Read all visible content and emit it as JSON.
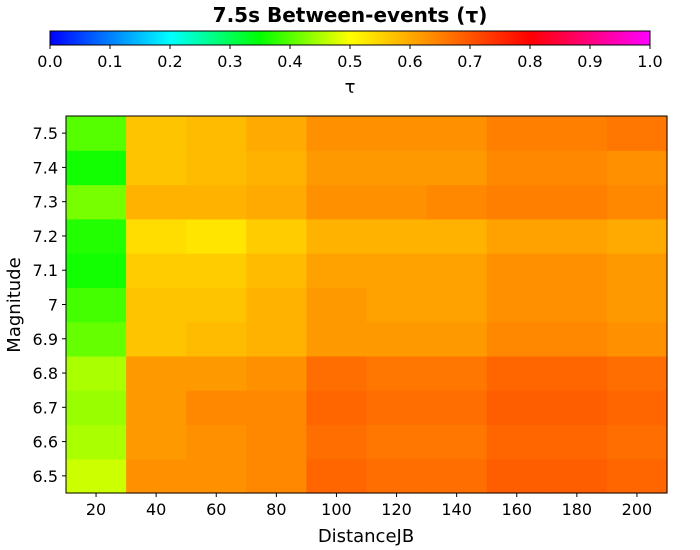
{
  "chart_data": {
    "type": "heatmap",
    "title": "7.5s Between-events (τ)",
    "xlabel": "DistanceJB",
    "ylabel": "Magnitude",
    "colorbar_label": "τ",
    "colorbar_range": [
      0.0,
      1.0
    ],
    "colorbar_ticks": [
      "0.0",
      "0.1",
      "0.2",
      "0.3",
      "0.4",
      "0.5",
      "0.6",
      "0.7",
      "0.8",
      "0.9",
      "1.0"
    ],
    "x": [
      "20",
      "40",
      "60",
      "80",
      "100",
      "120",
      "140",
      "160",
      "180",
      "200"
    ],
    "y": [
      "6.5",
      "6.6",
      "6.7",
      "6.8",
      "6.9",
      "7",
      "7.1",
      "7.2",
      "7.3",
      "7.4",
      "7.5"
    ],
    "values": [
      [
        0.47,
        0.63,
        0.63,
        0.64,
        0.68,
        0.67,
        0.67,
        0.69,
        0.69,
        0.68
      ],
      [
        0.45,
        0.62,
        0.63,
        0.64,
        0.67,
        0.66,
        0.66,
        0.68,
        0.68,
        0.67
      ],
      [
        0.44,
        0.62,
        0.64,
        0.64,
        0.68,
        0.67,
        0.67,
        0.69,
        0.69,
        0.68
      ],
      [
        0.45,
        0.62,
        0.62,
        0.63,
        0.67,
        0.66,
        0.66,
        0.68,
        0.68,
        0.67
      ],
      [
        0.41,
        0.57,
        0.58,
        0.59,
        0.62,
        0.62,
        0.62,
        0.64,
        0.64,
        0.63
      ],
      [
        0.39,
        0.57,
        0.57,
        0.59,
        0.62,
        0.61,
        0.61,
        0.63,
        0.63,
        0.62
      ],
      [
        0.36,
        0.56,
        0.56,
        0.58,
        0.61,
        0.61,
        0.61,
        0.63,
        0.63,
        0.62
      ],
      [
        0.37,
        0.54,
        0.53,
        0.56,
        0.59,
        0.59,
        0.59,
        0.61,
        0.61,
        0.6
      ],
      [
        0.42,
        0.59,
        0.59,
        0.6,
        0.63,
        0.63,
        0.64,
        0.65,
        0.65,
        0.64
      ],
      [
        0.36,
        0.57,
        0.58,
        0.59,
        0.62,
        0.62,
        0.62,
        0.64,
        0.64,
        0.63
      ],
      [
        0.4,
        0.57,
        0.58,
        0.6,
        0.63,
        0.63,
        0.63,
        0.65,
        0.65,
        0.66
      ]
    ],
    "grid": false
  }
}
